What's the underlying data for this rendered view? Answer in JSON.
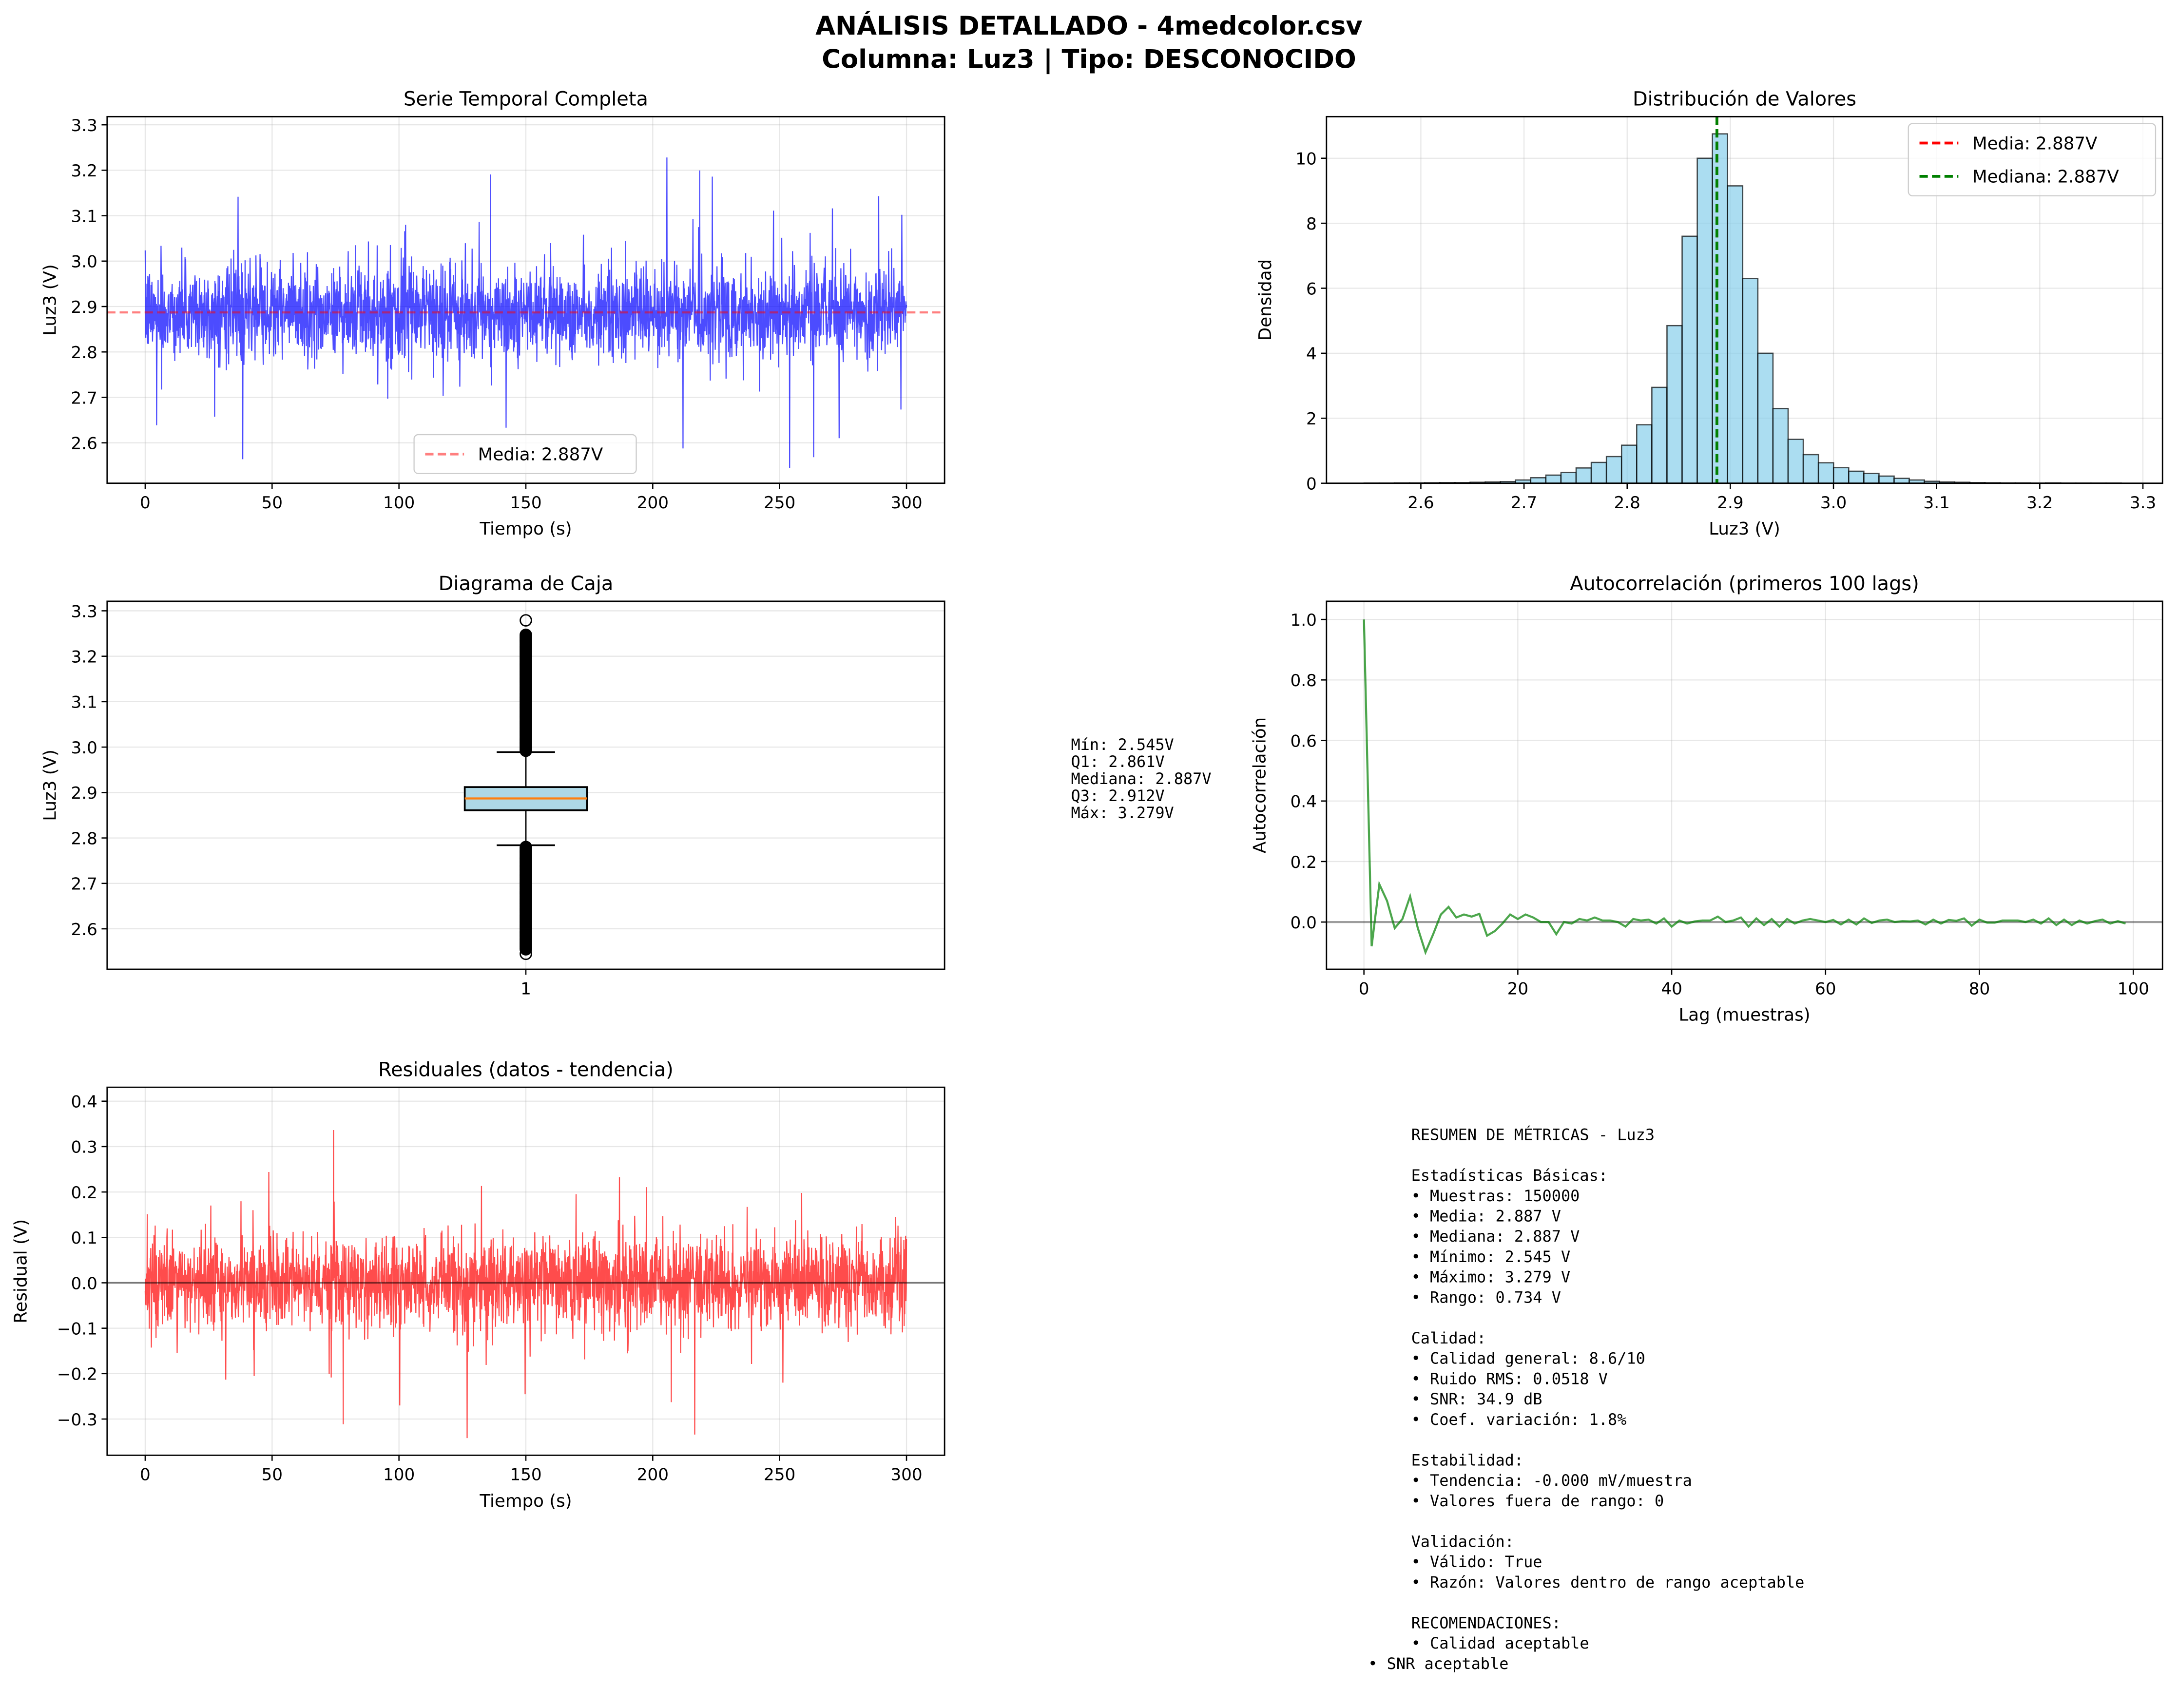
{
  "figure": {
    "title_line1": "ANÁLISIS DETALLADO - 4medcolor.csv",
    "title_line2": "Columna: Luz3 | Tipo: DESCONOCIDO"
  },
  "colors": {
    "series": "#0000ff",
    "hist_fill": "#87ceeb",
    "mean": "#ff0000",
    "median": "#008000",
    "box_fill": "#add8e6",
    "median_line": "#ff7f0e",
    "acf": "#008000",
    "residual": "#ff0000"
  },
  "chart_data": [
    {
      "id": "timeseries",
      "type": "line",
      "title": "Serie Temporal Completa",
      "xlabel": "Tiempo (s)",
      "ylabel": "Luz3 (V)",
      "xlim": [
        -15,
        315
      ],
      "ylim": [
        2.511,
        3.318
      ],
      "xticks": [
        0,
        50,
        100,
        150,
        200,
        250,
        300
      ],
      "xtick_labels": [
        "0",
        "50",
        "100",
        "150",
        "200",
        "250",
        "300"
      ],
      "yticks": [
        2.6,
        2.7,
        2.8,
        2.9,
        3.0,
        3.1,
        3.2,
        3.3
      ],
      "ytick_labels": [
        "2.6",
        "2.7",
        "2.8",
        "2.9",
        "3.0",
        "3.1",
        "3.2",
        "3.3"
      ],
      "series_summary": {
        "samples": 150000,
        "duration_s": 300,
        "mean": 2.887,
        "std": 0.0518,
        "min": 2.545,
        "max": 3.279
      },
      "mean_line": 2.887,
      "legend": [
        "Media: 2.887V"
      ],
      "legend_position": "lower-center",
      "grid": true
    },
    {
      "id": "histogram",
      "type": "bar",
      "title": "Distribución de Valores",
      "xlabel": "Luz3 (V)",
      "ylabel": "Densidad",
      "bin_start": 2.545,
      "bin_end": 3.279,
      "density": [
        0.005,
        0.005,
        0.01,
        0.01,
        0.015,
        0.02,
        0.02,
        0.03,
        0.04,
        0.05,
        0.1,
        0.17,
        0.25,
        0.33,
        0.47,
        0.64,
        0.82,
        1.17,
        1.8,
        2.95,
        4.85,
        7.6,
        10.0,
        10.75,
        9.15,
        6.3,
        4.0,
        2.3,
        1.35,
        0.88,
        0.63,
        0.48,
        0.37,
        0.3,
        0.22,
        0.15,
        0.1,
        0.06,
        0.04,
        0.03,
        0.02,
        0.015,
        0.01,
        0.01,
        0.005,
        0.01,
        0.005,
        0.005,
        0.005,
        0.005
      ],
      "xlim": [
        2.5085,
        3.319
      ],
      "ylim": [
        0,
        11.28
      ],
      "xticks": [
        2.6,
        2.7,
        2.8,
        2.9,
        3.0,
        3.1,
        3.2,
        3.3
      ],
      "xtick_labels": [
        "2.6",
        "2.7",
        "2.8",
        "2.9",
        "3.0",
        "3.1",
        "3.2",
        "3.3"
      ],
      "yticks": [
        0,
        2,
        4,
        6,
        8,
        10
      ],
      "ytick_labels": [
        "0",
        "2",
        "4",
        "6",
        "8",
        "10"
      ],
      "mean_line": 2.887,
      "median_line": 2.887,
      "legend": [
        "Media: 2.887V",
        "Mediana: 2.887V"
      ],
      "legend_position": "top-right",
      "grid": true
    },
    {
      "id": "boxplot",
      "type": "box",
      "title": "Diagrama de Caja",
      "ylabel": "Luz3 (V)",
      "category_label": "1",
      "stats": {
        "min": 2.545,
        "q1": 2.861,
        "median": 2.887,
        "q3": 2.912,
        "max": 3.279,
        "whisker_low": 2.784,
        "whisker_high": 2.989
      },
      "ylim": [
        2.511,
        3.321
      ],
      "yticks": [
        2.6,
        2.7,
        2.8,
        2.9,
        3.0,
        3.1,
        3.2,
        3.3
      ],
      "ytick_labels": [
        "2.6",
        "2.7",
        "2.8",
        "2.9",
        "3.0",
        "3.1",
        "3.2",
        "3.3"
      ],
      "annotation": [
        "Mín: 2.545V",
        "Q1: 2.861V",
        "Mediana: 2.887V",
        "Q3: 2.912V",
        "Máx: 3.279V"
      ],
      "grid": true
    },
    {
      "id": "acf",
      "type": "line",
      "title": "Autocorrelación (primeros 100 lags)",
      "xlabel": "Lag (muestras)",
      "ylabel": "Autocorrelación",
      "values": [
        1.0,
        -0.08,
        0.125,
        0.07,
        -0.02,
        0.01,
        0.085,
        -0.02,
        -0.1,
        -0.04,
        0.025,
        0.05,
        0.015,
        0.025,
        0.018,
        0.027,
        -0.045,
        -0.03,
        -0.005,
        0.025,
        0.01,
        0.025,
        0.015,
        0.0,
        0.0,
        -0.04,
        0.0,
        -0.005,
        0.01,
        0.005,
        0.015,
        0.005,
        0.005,
        0.0,
        -0.015,
        0.01,
        0.005,
        0.008,
        -0.005,
        0.012,
        -0.015,
        0.005,
        -0.005,
        0.002,
        0.005,
        0.005,
        0.018,
        0.0,
        0.005,
        0.015,
        -0.015,
        0.012,
        -0.01,
        0.01,
        -0.015,
        0.01,
        -0.005,
        0.005,
        0.01,
        0.005,
        0.0,
        0.007,
        -0.008,
        0.008,
        -0.008,
        0.012,
        -0.003,
        0.005,
        0.008,
        0.0,
        0.003,
        0.002,
        0.005,
        -0.008,
        0.008,
        -0.005,
        0.007,
        0.004,
        0.012,
        -0.012,
        0.008,
        -0.002,
        -0.002,
        0.005,
        0.005,
        0.005,
        0.0,
        0.008,
        -0.005,
        0.012,
        -0.01,
        0.008,
        -0.01,
        0.005,
        -0.005,
        0.003,
        0.008,
        -0.005,
        0.003,
        -0.005
      ],
      "xlim": [
        -4.87,
        103.8
      ],
      "ylim": [
        -0.156,
        1.06
      ],
      "xticks": [
        0,
        20,
        40,
        60,
        80,
        100
      ],
      "xtick_labels": [
        "0",
        "20",
        "40",
        "60",
        "80",
        "100"
      ],
      "yticks": [
        0.0,
        0.2,
        0.4,
        0.6,
        0.8,
        1.0
      ],
      "ytick_labels": [
        "0.0",
        "0.2",
        "0.4",
        "0.6",
        "0.8",
        "1.0"
      ],
      "zero_line": 0,
      "grid": true
    },
    {
      "id": "residuals",
      "type": "line",
      "title": "Residuales (datos - tendencia)",
      "xlabel": "Tiempo (s)",
      "ylabel": "Residual (V)",
      "xlim": [
        -15,
        315
      ],
      "ylim": [
        -0.3798,
        0.4306
      ],
      "xticks": [
        0,
        50,
        100,
        150,
        200,
        250,
        300
      ],
      "xtick_labels": [
        "0",
        "50",
        "100",
        "150",
        "200",
        "250",
        "300"
      ],
      "yticks": [
        -0.3,
        -0.2,
        -0.1,
        0.0,
        0.1,
        0.2,
        0.3,
        0.4
      ],
      "ytick_labels": [
        "−0.3",
        "−0.2",
        "−0.1",
        "0.0",
        "0.1",
        "0.2",
        "0.3",
        "0.4"
      ],
      "series_summary": {
        "mean": 0.0,
        "std": 0.0518,
        "min": -0.342,
        "max": 0.392
      },
      "zero_line": 0,
      "grid": true
    }
  ],
  "summary": {
    "lines": [
      "RESUMEN DE MÉTRICAS - Luz3",
      "",
      "Estadísticas Básicas:",
      "• Muestras: 150000",
      "• Media: 2.887 V",
      "• Mediana: 2.887 V",
      "• Mínimo: 2.545 V",
      "• Máximo: 3.279 V",
      "• Rango: 0.734 V",
      "",
      "Calidad:",
      "• Calidad general: 8.6/10",
      "• Ruido RMS: 0.0518 V",
      "• SNR: 34.9 dB",
      "• Coef. variación: 1.8%",
      "",
      "Estabilidad:",
      "• Tendencia: -0.000 mV/muestra",
      "• Valores fuera de rango: 0",
      "",
      "Validación:",
      "• Válido: True",
      "• Razón: Valores dentro de rango aceptable",
      "",
      "RECOMENDACIONES:",
      "• Calidad aceptable"
    ],
    "last_line": "• SNR aceptable"
  }
}
